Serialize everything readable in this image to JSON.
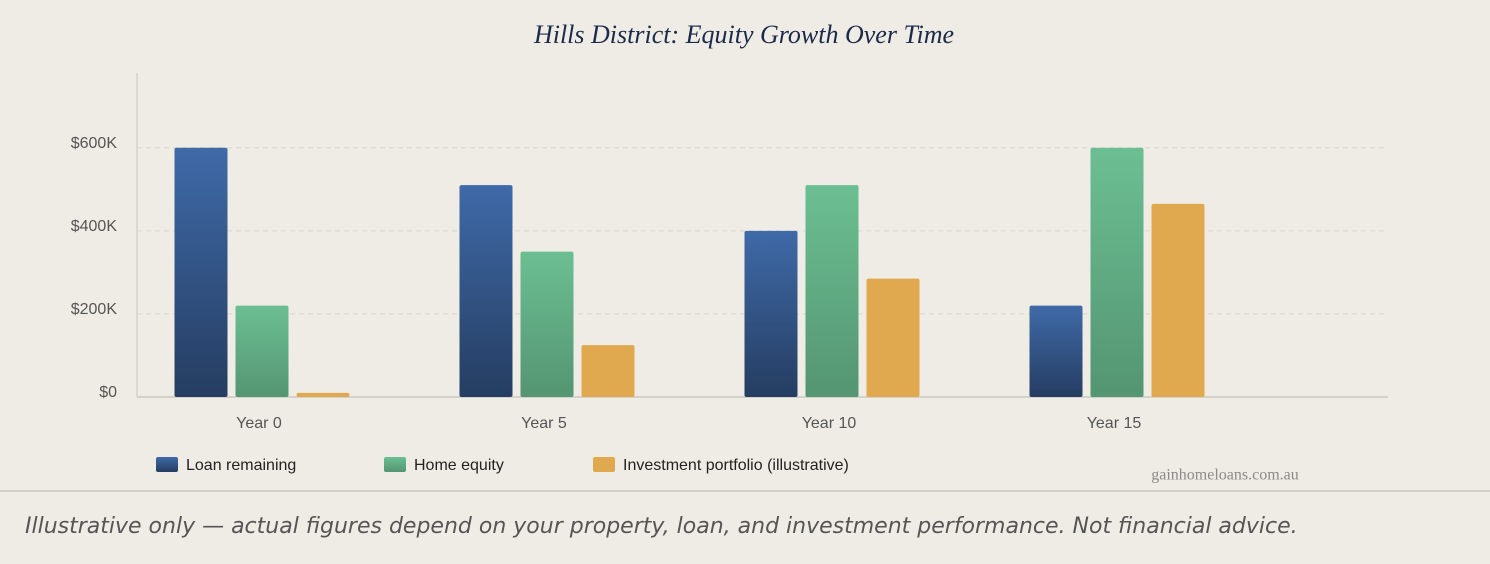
{
  "chart_data": {
    "type": "bar",
    "title": "Hills District: Equity Growth Over Time",
    "categories": [
      "Year 0",
      "Year 5",
      "Year 10",
      "Year 15"
    ],
    "series": [
      {
        "name": "Loan remaining",
        "color": "#3f6aa8",
        "values": [
          600000,
          510000,
          400000,
          220000
        ]
      },
      {
        "name": "Home equity",
        "color": "#6cbf92",
        "values": [
          220000,
          350000,
          510000,
          600000
        ]
      },
      {
        "name": "Investment portfolio (illustrative)",
        "color": "#e0a94f",
        "values": [
          10000,
          125000,
          285000,
          465000
        ]
      }
    ],
    "ylim": [
      0,
      780000
    ],
    "yticks": [
      {
        "value": 0,
        "label": "$0"
      },
      {
        "value": 200000,
        "label": "$200K"
      },
      {
        "value": 400000,
        "label": "$400K"
      },
      {
        "value": 600000,
        "label": "$600K"
      }
    ],
    "grid": true,
    "watermark": "gainhomeloans.com.au"
  },
  "footer": {
    "note": "Illustrative only — actual figures depend on your property, loan, and investment performance. Not financial advice."
  }
}
